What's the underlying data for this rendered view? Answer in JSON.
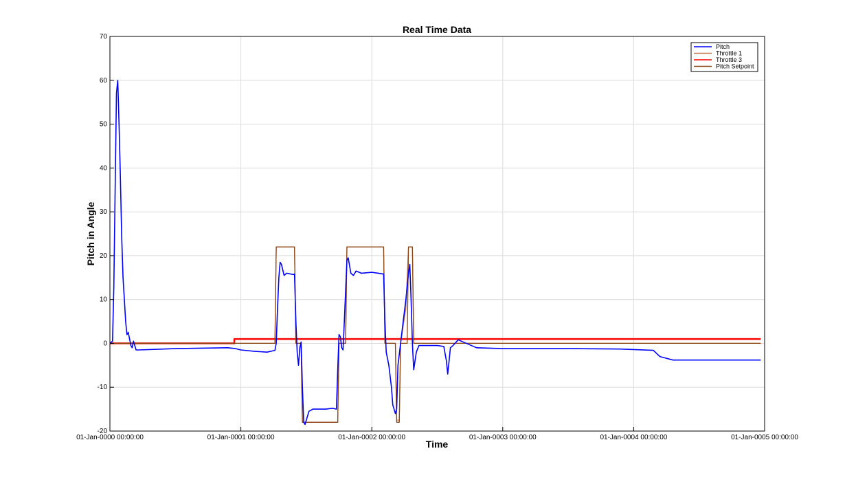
{
  "chart_data": {
    "type": "line",
    "title": "Real Time Data",
    "xlabel": "Time",
    "ylabel": "Pitch in Angle",
    "xlim": [
      0,
      5
    ],
    "ylim": [
      -20,
      70
    ],
    "xticks": [
      0,
      1,
      2,
      3,
      4,
      5
    ],
    "xtick_labels": [
      "01-Jan-0000 00:00:00",
      "01-Jan-0001 00:00:00",
      "01-Jan-0002 00:00:00",
      "01-Jan-0003 00:00:00",
      "01-Jan-0004 00:00:00",
      "01-Jan-0005 00:00:00"
    ],
    "yticks": [
      -20,
      -10,
      0,
      10,
      20,
      30,
      40,
      50,
      60,
      70
    ],
    "grid": true,
    "legend_position": "top-right",
    "series": [
      {
        "name": "Pitch",
        "color": "#0000ff",
        "points": [
          [
            0,
            0
          ],
          [
            0.02,
            0.5
          ],
          [
            0.03,
            13
          ],
          [
            0.04,
            35
          ],
          [
            0.05,
            57
          ],
          [
            0.06,
            60
          ],
          [
            0.07,
            50
          ],
          [
            0.08,
            38
          ],
          [
            0.09,
            24
          ],
          [
            0.1,
            15
          ],
          [
            0.12,
            5
          ],
          [
            0.13,
            2
          ],
          [
            0.14,
            2.5
          ],
          [
            0.15,
            1
          ],
          [
            0.16,
            -0.5
          ],
          [
            0.17,
            -1
          ],
          [
            0.18,
            0.5
          ],
          [
            0.2,
            -1.5
          ],
          [
            0.22,
            -1.5
          ],
          [
            0.5,
            -1.2
          ],
          [
            0.9,
            -1.0
          ],
          [
            0.96,
            -1.2
          ],
          [
            1.0,
            -1.5
          ],
          [
            1.1,
            -1.8
          ],
          [
            1.2,
            -2
          ],
          [
            1.26,
            -1.6
          ],
          [
            1.27,
            0
          ],
          [
            1.28,
            8
          ],
          [
            1.29,
            15
          ],
          [
            1.3,
            18.5
          ],
          [
            1.31,
            18
          ],
          [
            1.33,
            15.5
          ],
          [
            1.35,
            16
          ],
          [
            1.4,
            15.7
          ],
          [
            1.41,
            15.8
          ],
          [
            1.42,
            5
          ],
          [
            1.43,
            -2
          ],
          [
            1.44,
            -5
          ],
          [
            1.45,
            -1
          ],
          [
            1.46,
            0.3
          ],
          [
            1.47,
            -10
          ],
          [
            1.48,
            -18
          ],
          [
            1.49,
            -18.5
          ],
          [
            1.52,
            -15.5
          ],
          [
            1.55,
            -15
          ],
          [
            1.6,
            -15
          ],
          [
            1.65,
            -15
          ],
          [
            1.7,
            -14.8
          ],
          [
            1.73,
            -15
          ],
          [
            1.74,
            -6
          ],
          [
            1.75,
            2
          ],
          [
            1.76,
            1.5
          ],
          [
            1.77,
            -1
          ],
          [
            1.78,
            -1.5
          ],
          [
            1.79,
            5
          ],
          [
            1.8,
            12
          ],
          [
            1.81,
            19
          ],
          [
            1.82,
            19.5
          ],
          [
            1.84,
            16
          ],
          [
            1.86,
            15.5
          ],
          [
            1.88,
            16.5
          ],
          [
            1.92,
            16
          ],
          [
            2.0,
            16.2
          ],
          [
            2.05,
            16
          ],
          [
            2.09,
            15.8
          ],
          [
            2.1,
            5
          ],
          [
            2.11,
            -2
          ],
          [
            2.13,
            -5
          ],
          [
            2.15,
            -10
          ],
          [
            2.16,
            -14
          ],
          [
            2.18,
            -16
          ],
          [
            2.19,
            -15
          ],
          [
            2.2,
            -5
          ],
          [
            2.22,
            0
          ],
          [
            2.24,
            5
          ],
          [
            2.26,
            10
          ],
          [
            2.28,
            16
          ],
          [
            2.29,
            18
          ],
          [
            2.3,
            10
          ],
          [
            2.31,
            0
          ],
          [
            2.32,
            -6
          ],
          [
            2.34,
            -2
          ],
          [
            2.36,
            -0.5
          ],
          [
            2.5,
            -0.5
          ],
          [
            2.55,
            -0.7
          ],
          [
            2.57,
            -4
          ],
          [
            2.58,
            -7
          ],
          [
            2.59,
            -4
          ],
          [
            2.6,
            -1
          ],
          [
            2.62,
            -0.5
          ],
          [
            2.66,
            0.8
          ],
          [
            2.8,
            -1
          ],
          [
            3.0,
            -1.2
          ],
          [
            3.5,
            -1.2
          ],
          [
            3.9,
            -1.3
          ],
          [
            4.0,
            -1.4
          ],
          [
            4.15,
            -1.6
          ],
          [
            4.2,
            -3
          ],
          [
            4.3,
            -3.8
          ],
          [
            4.6,
            -3.8
          ],
          [
            4.97,
            -3.8
          ]
        ]
      },
      {
        "name": "Throttle 1",
        "color": "#c87850",
        "points": [
          [
            0,
            0
          ],
          [
            1.26,
            0
          ],
          [
            1.27,
            22
          ],
          [
            1.41,
            22
          ],
          [
            1.42,
            0
          ],
          [
            1.46,
            0
          ],
          [
            1.47,
            -18
          ],
          [
            1.74,
            -18
          ],
          [
            1.75,
            0
          ],
          [
            1.8,
            0
          ],
          [
            1.81,
            22
          ],
          [
            2.09,
            22
          ],
          [
            2.1,
            0
          ],
          [
            2.18,
            0
          ],
          [
            2.19,
            -17.5
          ],
          [
            2.21,
            -17.5
          ],
          [
            2.22,
            0
          ],
          [
            2.26,
            8
          ],
          [
            2.28,
            22
          ],
          [
            2.31,
            22
          ],
          [
            2.32,
            0
          ],
          [
            4.97,
            0
          ]
        ]
      },
      {
        "name": "Throttle 3",
        "color": "#ff0000",
        "points": [
          [
            0,
            0
          ],
          [
            0.95,
            0
          ],
          [
            0.95,
            1
          ],
          [
            4.97,
            1
          ]
        ]
      },
      {
        "name": "Pitch Setpoint",
        "color": "#8b4513",
        "points": [
          [
            0,
            0
          ],
          [
            1.26,
            0
          ],
          [
            1.27,
            22
          ],
          [
            1.41,
            22
          ],
          [
            1.42,
            0
          ],
          [
            1.46,
            0
          ],
          [
            1.47,
            -18
          ],
          [
            1.74,
            -18
          ],
          [
            1.75,
            0
          ],
          [
            1.8,
            0
          ],
          [
            1.81,
            22
          ],
          [
            2.09,
            22
          ],
          [
            2.1,
            0
          ],
          [
            2.18,
            0
          ],
          [
            2.19,
            -18
          ],
          [
            2.21,
            -18
          ],
          [
            2.22,
            0
          ],
          [
            2.27,
            0
          ],
          [
            2.28,
            22
          ],
          [
            2.31,
            22
          ],
          [
            2.32,
            0
          ],
          [
            4.97,
            0
          ]
        ]
      }
    ]
  }
}
